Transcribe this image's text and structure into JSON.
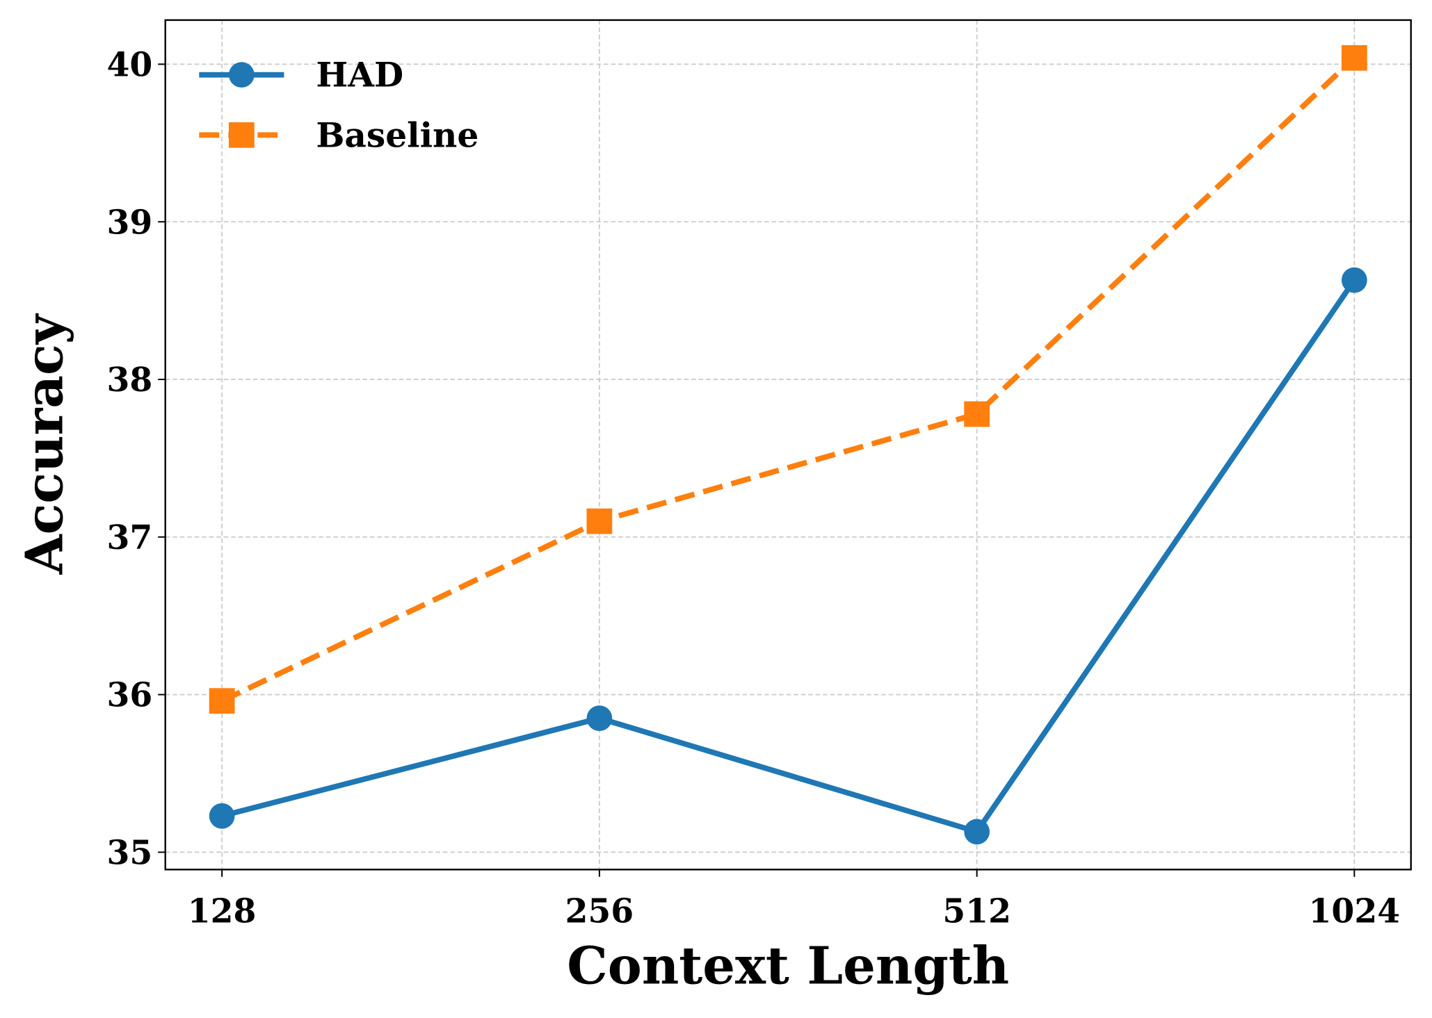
{
  "chart_data": {
    "type": "line",
    "x_label": "Context Length",
    "y_label": "Accuracy",
    "categories": [
      "128",
      "256",
      "512",
      "1024"
    ],
    "series": [
      {
        "name": "HAD",
        "color": "#1f77b4",
        "marker": "circle",
        "linestyle": "solid",
        "values": [
          35.23,
          35.85,
          35.13,
          38.63
        ]
      },
      {
        "name": "Baseline",
        "color": "#ff7f0e",
        "marker": "square",
        "linestyle": "dashed",
        "values": [
          35.96,
          37.1,
          37.78,
          40.04
        ]
      }
    ],
    "ylim": [
      34.89,
      40.28
    ],
    "yticks": [
      35,
      36,
      37,
      38,
      39,
      40
    ],
    "grid": true,
    "legend": "upper left"
  }
}
